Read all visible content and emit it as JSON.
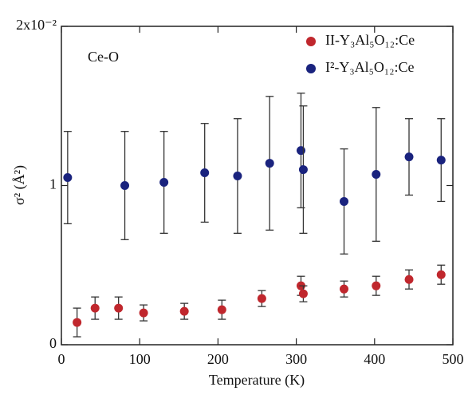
{
  "chart_data": {
    "type": "scatter",
    "xlabel": "Temperature (K)",
    "ylabel": "σ² (Å²)",
    "annotation": "Ce-O",
    "xlim": [
      0,
      500
    ],
    "xticks": [
      0,
      100,
      200,
      300,
      400,
      500
    ],
    "ylim": [
      0,
      0.02
    ],
    "yticks": [
      0,
      {
        "value": 0.01,
        "label": "1"
      },
      {
        "value": 0.02,
        "label": "2x10⁻²"
      }
    ],
    "legend": "upper right",
    "series": [
      {
        "name": "II-Y₃Al₅O₁₂:Ce",
        "color": "#c0272d",
        "x": [
          20,
          43,
          73,
          105,
          157,
          205,
          256,
          306,
          309,
          361,
          402,
          444,
          485
        ],
        "values": [
          0.0014,
          0.0023,
          0.0023,
          0.002,
          0.0021,
          0.0022,
          0.0029,
          0.0037,
          0.0032,
          0.0035,
          0.0037,
          0.0041,
          0.0044
        ],
        "errors": [
          0.0009,
          0.0007,
          0.0007,
          0.0005,
          0.0005,
          0.0006,
          0.0005,
          0.0006,
          0.0005,
          0.0005,
          0.0006,
          0.0006,
          0.0006
        ]
      },
      {
        "name": "I²-Y₃Al₅O₁₂:Ce",
        "color": "#1a237e",
        "x": [
          8,
          81,
          131,
          183,
          225,
          266,
          306,
          309,
          361,
          402,
          444,
          485
        ],
        "values": [
          0.0105,
          0.01,
          0.0102,
          0.0108,
          0.0106,
          0.0114,
          0.0122,
          0.011,
          0.009,
          0.0107,
          0.0118,
          0.0116
        ],
        "errors": [
          0.0029,
          0.0034,
          0.0032,
          0.0031,
          0.0036,
          0.0042,
          0.0036,
          0.004,
          0.0033,
          0.0042,
          0.0024,
          0.0026
        ]
      }
    ]
  }
}
